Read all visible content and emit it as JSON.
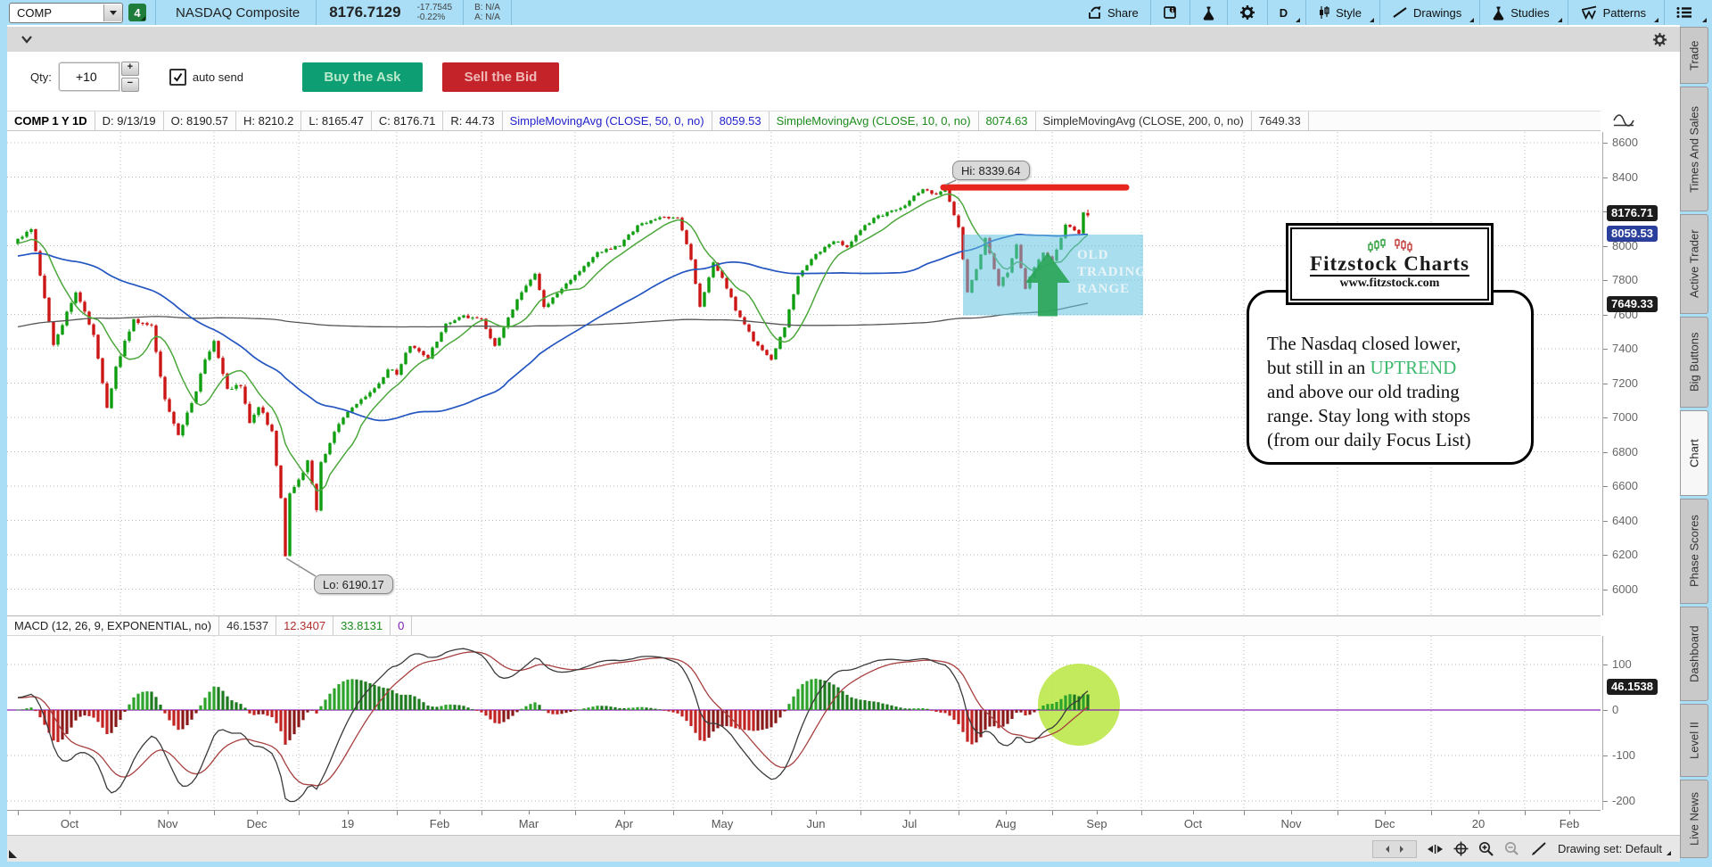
{
  "colors": {
    "toolbar_bg": "#a9def6",
    "buy_green": "#0e9e74",
    "sell_red": "#c4232a",
    "candle_up": "#0f9e0f",
    "candle_down": "#cc1515",
    "sma50_blue": "#2356c0",
    "sma10_green": "#4ca73c",
    "sma200_gray": "#555555",
    "macd_zero_purple": "#8b22b8",
    "macd_avg_red": "#a84040",
    "macd_value_dark": "#3a3a3a",
    "resistance_red": "#e6251f",
    "range_box_blue": "#62c2e0",
    "highlight_chartreuse": "#b4e335",
    "badge_dark": "#1c1c1c",
    "badge_blue": "#2b3f9c"
  },
  "topbar": {
    "symbol": "COMP",
    "badge": "4",
    "name": "NASDAQ Composite",
    "price": "8176.7129",
    "change": "-17.7545",
    "change_pct": "-0.22%",
    "bid": "B: N/A",
    "ask": "A: N/A",
    "share": "Share",
    "timeframe": "D",
    "style": "Style",
    "drawings": "Drawings",
    "studies": "Studies",
    "patterns": "Patterns"
  },
  "order_bar": {
    "qty_label": "Qty:",
    "qty_value": "+10",
    "auto_send": "auto send",
    "buy": "Buy the Ask",
    "sell": "Sell the Bid"
  },
  "chart_header": {
    "title": "COMP 1 Y 1D",
    "d": "D: 9/13/19",
    "o": "O: 8190.57",
    "h": "H: 8210.2",
    "l": "L: 8165.47",
    "c": "C: 8176.71",
    "r": "R: 44.73",
    "sma50_label": "SimpleMovingAvg (CLOSE, 50, 0, no)",
    "sma50_value": "8059.53",
    "sma10_label": "SimpleMovingAvg (CLOSE, 10, 0, no)",
    "sma10_value": "8074.63",
    "sma200_label": "SimpleMovingAvg (CLOSE, 200, 0, no)",
    "sma200_value": "7649.33"
  },
  "macd_header": {
    "label": "MACD (12, 26, 9, EXPONENTIAL, no)",
    "value": "46.1537",
    "avg": "12.3407",
    "diff": "33.8131",
    "zero": "0"
  },
  "annotations": {
    "hi": "Hi: 8339.64",
    "lo": "Lo: 6190.17",
    "range_line1": "OLD",
    "range_line2": "TRADING",
    "range_line3": "RANGE",
    "logo_title": "Fitzstock Charts",
    "logo_url": "www.fitzstock.com",
    "note_line1": "The Nasdaq closed lower,",
    "note_line2_pre": "but still in an ",
    "uptrend": "UPTREND",
    "note_line3": "and above our old trading",
    "note_line4": "range.  Stay long with stops",
    "note_line5": "(from our daily Focus List)"
  },
  "axes": {
    "price_ticks": [
      8600,
      8400,
      8200,
      8000,
      7800,
      7600,
      7400,
      7200,
      7000,
      6800,
      6600,
      6400,
      6200,
      6000
    ],
    "price_badges": [
      {
        "text": "8176.71",
        "style": "dark",
        "price": 8176.71
      },
      {
        "text": "8059.53",
        "style": "blue",
        "price": 8059.53
      },
      {
        "text": "7649.33",
        "style": "dark",
        "price": 7649.33
      }
    ],
    "macd_ticks": [
      100,
      0,
      -100,
      -200
    ],
    "macd_badge": {
      "text": "46.1538",
      "value": 46.1538
    }
  },
  "bottom_bar": {
    "drawing_set": "Drawing set: Default"
  },
  "side_tabs": [
    {
      "label": "Trade",
      "active": false
    },
    {
      "label": "Times And Sales",
      "active": false
    },
    {
      "label": "Active Trader",
      "active": false
    },
    {
      "label": "Big Buttons",
      "active": false
    },
    {
      "label": "Chart",
      "active": true
    },
    {
      "label": "Phase Scores",
      "active": false
    },
    {
      "label": "Dashboard",
      "active": false
    },
    {
      "label": "Level II",
      "active": false
    },
    {
      "label": "Live News",
      "active": false
    }
  ],
  "chart_data": {
    "type": "candlestick",
    "symbol": "COMP",
    "timeframe": "1 Y 1D",
    "date_shown": "9/13/19",
    "price_axis_range": [
      6000,
      8600
    ],
    "macd_axis_range": [
      -200,
      100
    ],
    "month_boundaries": [
      [
        "Oct",
        0
      ],
      [
        "Nov",
        23
      ],
      [
        "Dec",
        44
      ],
      [
        "19",
        63
      ],
      [
        "Feb",
        85
      ],
      [
        "Mar",
        104
      ],
      [
        "Apr",
        125
      ],
      [
        "May",
        147
      ],
      [
        "Jun",
        169
      ],
      [
        "Jul",
        189
      ],
      [
        "Aug",
        211
      ],
      [
        "Sep",
        232
      ],
      [
        "Oct",
        252
      ],
      [
        "Nov",
        275
      ],
      [
        "Dec",
        296
      ],
      [
        "20",
        317
      ],
      [
        "Feb",
        338
      ]
    ],
    "pre_anchors": [
      [
        -210,
        6950
      ],
      [
        -170,
        7300
      ],
      [
        -130,
        7150
      ],
      [
        -90,
        7600
      ],
      [
        -50,
        7850
      ],
      [
        -10,
        7990
      ],
      [
        -1,
        8030
      ]
    ],
    "price_anchors": [
      [
        0,
        8040
      ],
      [
        3,
        8090
      ],
      [
        8,
        7430
      ],
      [
        13,
        7730
      ],
      [
        17,
        7480
      ],
      [
        20,
        7050
      ],
      [
        22,
        7300
      ],
      [
        26,
        7570
      ],
      [
        30,
        7530
      ],
      [
        33,
        7100
      ],
      [
        36,
        6910
      ],
      [
        39,
        7080
      ],
      [
        42,
        7330
      ],
      [
        44,
        7440
      ],
      [
        47,
        7160
      ],
      [
        50,
        7190
      ],
      [
        52,
        6970
      ],
      [
        54,
        7070
      ],
      [
        57,
        6910
      ],
      [
        59,
        6530
      ],
      [
        60,
        6192
      ],
      [
        61,
        6550
      ],
      [
        63,
        6635
      ],
      [
        65,
        6740
      ],
      [
        67,
        6463
      ],
      [
        68,
        6739
      ],
      [
        72,
        6970
      ],
      [
        76,
        7080
      ],
      [
        80,
        7160
      ],
      [
        83,
        7280
      ],
      [
        85,
        7260
      ],
      [
        88,
        7420
      ],
      [
        92,
        7350
      ],
      [
        96,
        7550
      ],
      [
        100,
        7590
      ],
      [
        104,
        7570
      ],
      [
        107,
        7410
      ],
      [
        112,
        7690
      ],
      [
        116,
        7840
      ],
      [
        118,
        7640
      ],
      [
        121,
        7730
      ],
      [
        125,
        7830
      ],
      [
        130,
        7960
      ],
      [
        135,
        8000
      ],
      [
        139,
        8120
      ],
      [
        143,
        8160
      ],
      [
        148,
        8164
      ],
      [
        151,
        7920
      ],
      [
        153,
        7650
      ],
      [
        156,
        7900
      ],
      [
        158,
        7820
      ],
      [
        161,
        7630
      ],
      [
        165,
        7450
      ],
      [
        169,
        7330
      ],
      [
        172,
        7530
      ],
      [
        175,
        7820
      ],
      [
        179,
        7950
      ],
      [
        183,
        8030
      ],
      [
        186,
        7990
      ],
      [
        189,
        8090
      ],
      [
        192,
        8160
      ],
      [
        196,
        8200
      ],
      [
        199,
        8240
      ],
      [
        203,
        8330
      ],
      [
        206,
        8300
      ],
      [
        208,
        8330
      ],
      [
        210,
        8175
      ],
      [
        211,
        8110
      ],
      [
        213,
        7730
      ],
      [
        215,
        7860
      ],
      [
        217,
        8040
      ],
      [
        220,
        7773
      ],
      [
        222,
        7850
      ],
      [
        224,
        8003
      ],
      [
        226,
        7750
      ],
      [
        228,
        7880
      ],
      [
        230,
        7963
      ],
      [
        232,
        7910
      ],
      [
        235,
        8117
      ],
      [
        238,
        8078
      ],
      [
        239,
        8194
      ],
      [
        240,
        8176.71
      ]
    ],
    "hi": {
      "day": 208,
      "value": 8339.64
    },
    "lo": {
      "day": 60,
      "value": 6190.17
    },
    "last_candle": {
      "date": "9/13/19",
      "open": 8190.57,
      "high": 8210.2,
      "low": 8165.47,
      "close": 8176.71,
      "range": 44.73
    },
    "studies": {
      "sma_periods": [
        50,
        10,
        200
      ],
      "sma_values": [
        8059.53,
        8074.63,
        7649.33
      ],
      "macd": {
        "fast": 12,
        "slow": 26,
        "signal": 9,
        "average_type": "EXPONENTIAL",
        "value": 46.1537,
        "avg": 12.3407,
        "diff": 33.8131
      }
    }
  }
}
